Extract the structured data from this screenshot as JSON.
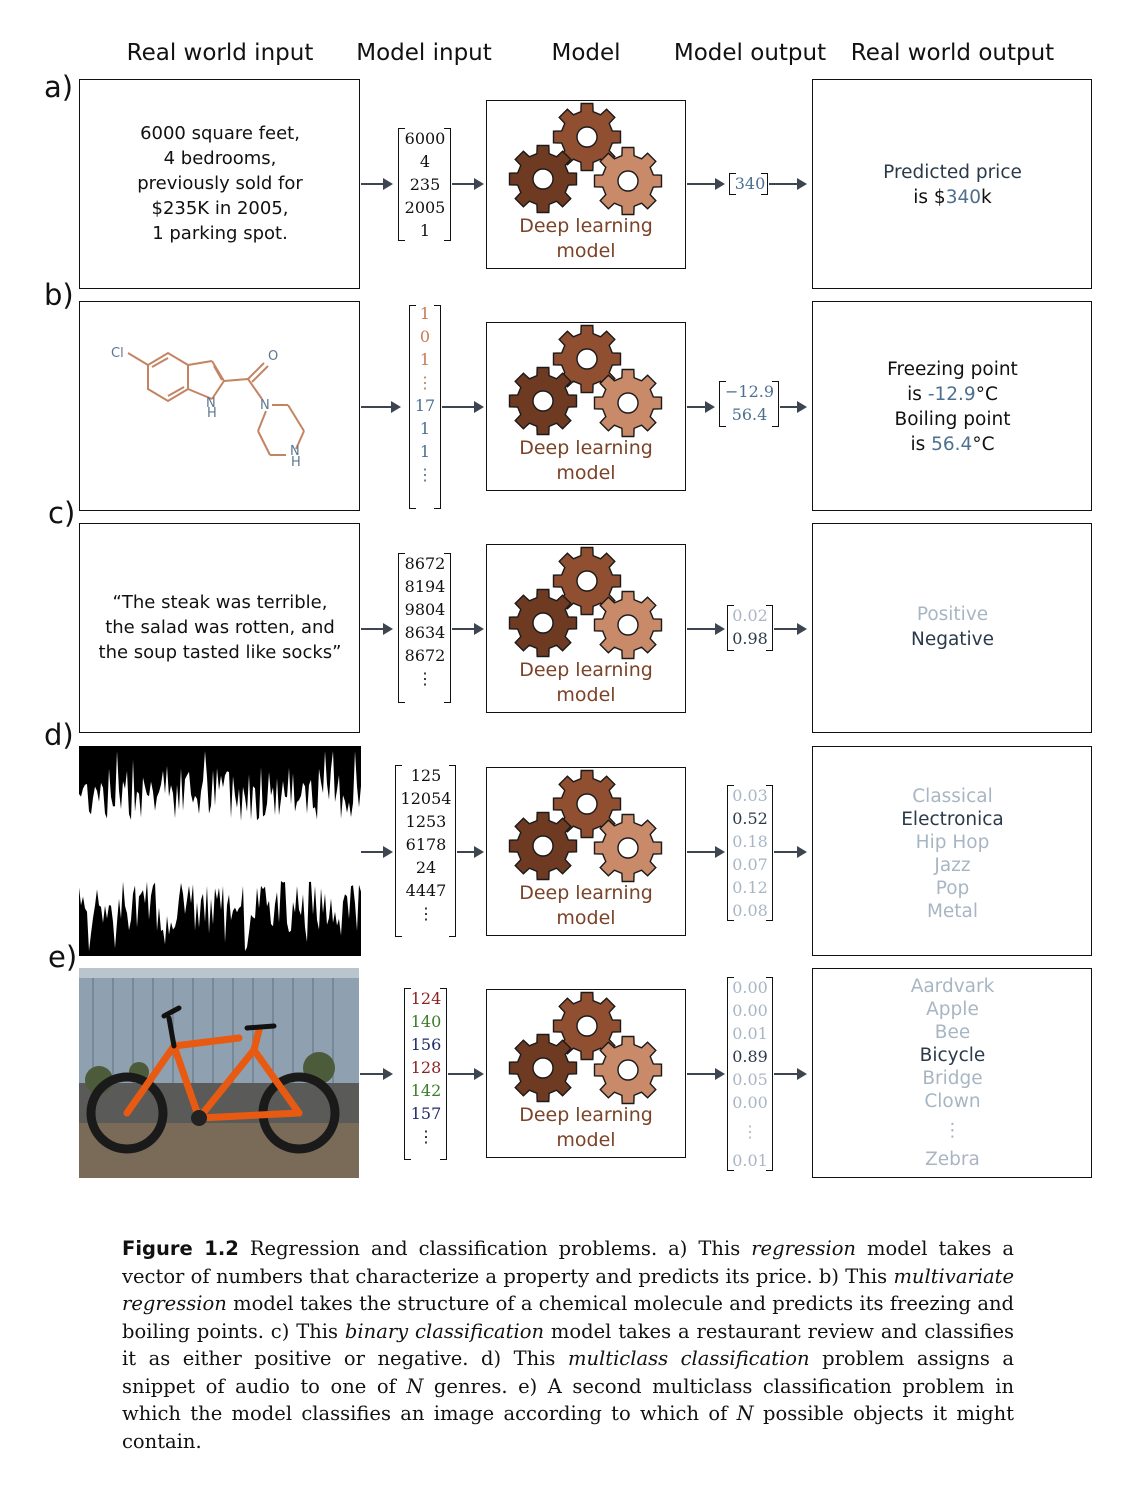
{
  "column_headers": [
    "Real world input",
    "Model input",
    "Model",
    "Model output",
    "Real world output"
  ],
  "model_label_line1": "Deep learning",
  "model_label_line2": "model",
  "gear_colors": {
    "dark": "#6e3a22",
    "mid": "#8f4f30",
    "light": "#c98a6a"
  },
  "rows": [
    {
      "label": "a)",
      "input_lines": [
        "6000 square feet,",
        "4 bedrooms,",
        "previously sold for",
        "$235K in 2005,",
        "1 parking spot."
      ],
      "model_input": [
        "6000",
        "4",
        "235",
        "2005",
        "1"
      ],
      "model_output": [
        "340"
      ],
      "output_lines": [
        "Predicted price",
        "is $",
        "340",
        "k"
      ]
    },
    {
      "label": "b)",
      "molecule_atoms": [
        "Cl",
        "O",
        "N",
        "H",
        "N",
        "N",
        "H"
      ],
      "model_input": [
        "1",
        "0",
        "1",
        "⋮",
        "17",
        "1",
        "1",
        "⋮"
      ],
      "model_output": [
        "−12.9",
        "56.4"
      ],
      "output_lines": [
        "Freezing point",
        "is ",
        "-12.9",
        "°C",
        "Boiling point",
        "is ",
        "56.4",
        "°C"
      ]
    },
    {
      "label": "c)",
      "input_lines": [
        "“The steak was terrible,",
        "the salad was rotten, and",
        "the soup tasted like socks”"
      ],
      "model_input": [
        "8672",
        "8194",
        "9804",
        "8634",
        "8672",
        "⋮"
      ],
      "model_output": [
        "0.02",
        "0.98"
      ],
      "output_lines": [
        "Positive",
        "Negative"
      ]
    },
    {
      "label": "d)",
      "model_input": [
        "125",
        "12054",
        "1253",
        "6178",
        "24",
        "4447",
        "⋮"
      ],
      "model_output": [
        "0.03",
        "0.52",
        "0.18",
        "0.07",
        "0.12",
        "0.08"
      ],
      "output_lines": [
        "Classical",
        "Electronica",
        "Hip Hop",
        "Jazz",
        "Pop",
        "Metal"
      ]
    },
    {
      "label": "e)",
      "model_input": [
        "124",
        "140",
        "156",
        "128",
        "142",
        "157",
        "⋮"
      ],
      "model_output": [
        "0.00",
        "0.00",
        "0.01",
        "0.89",
        "0.05",
        "0.00",
        "⋮",
        "0.01"
      ],
      "output_lines": [
        "Aardvark",
        "Apple",
        "Bee",
        "Bicycle",
        "Bridge",
        "Clown",
        "⋮",
        "Zebra"
      ]
    }
  ],
  "caption": {
    "figure": "Figure 1.2",
    "t1": " Regression and classification problems. a) This ",
    "e1": "regression",
    "t2": " model takes a vector of numbers that characterize a property and predicts its price. b) This ",
    "e2": "multivariate regression",
    "t3": " model takes the structure of a chemical molecule and predicts its freezing and boiling points. c) This ",
    "e3": "binary classification",
    "t4": " model takes a restaurant review and classifies it as either positive or negative. d) This ",
    "e4": "multiclass classification",
    "t5": " problem assigns a snippet of audio to one of ",
    "n1": "N",
    "t6": " genres. e) A second multiclass classification problem in which the model classifies an image according to which of ",
    "n2": "N",
    "t7": " possible objects it might contain."
  }
}
